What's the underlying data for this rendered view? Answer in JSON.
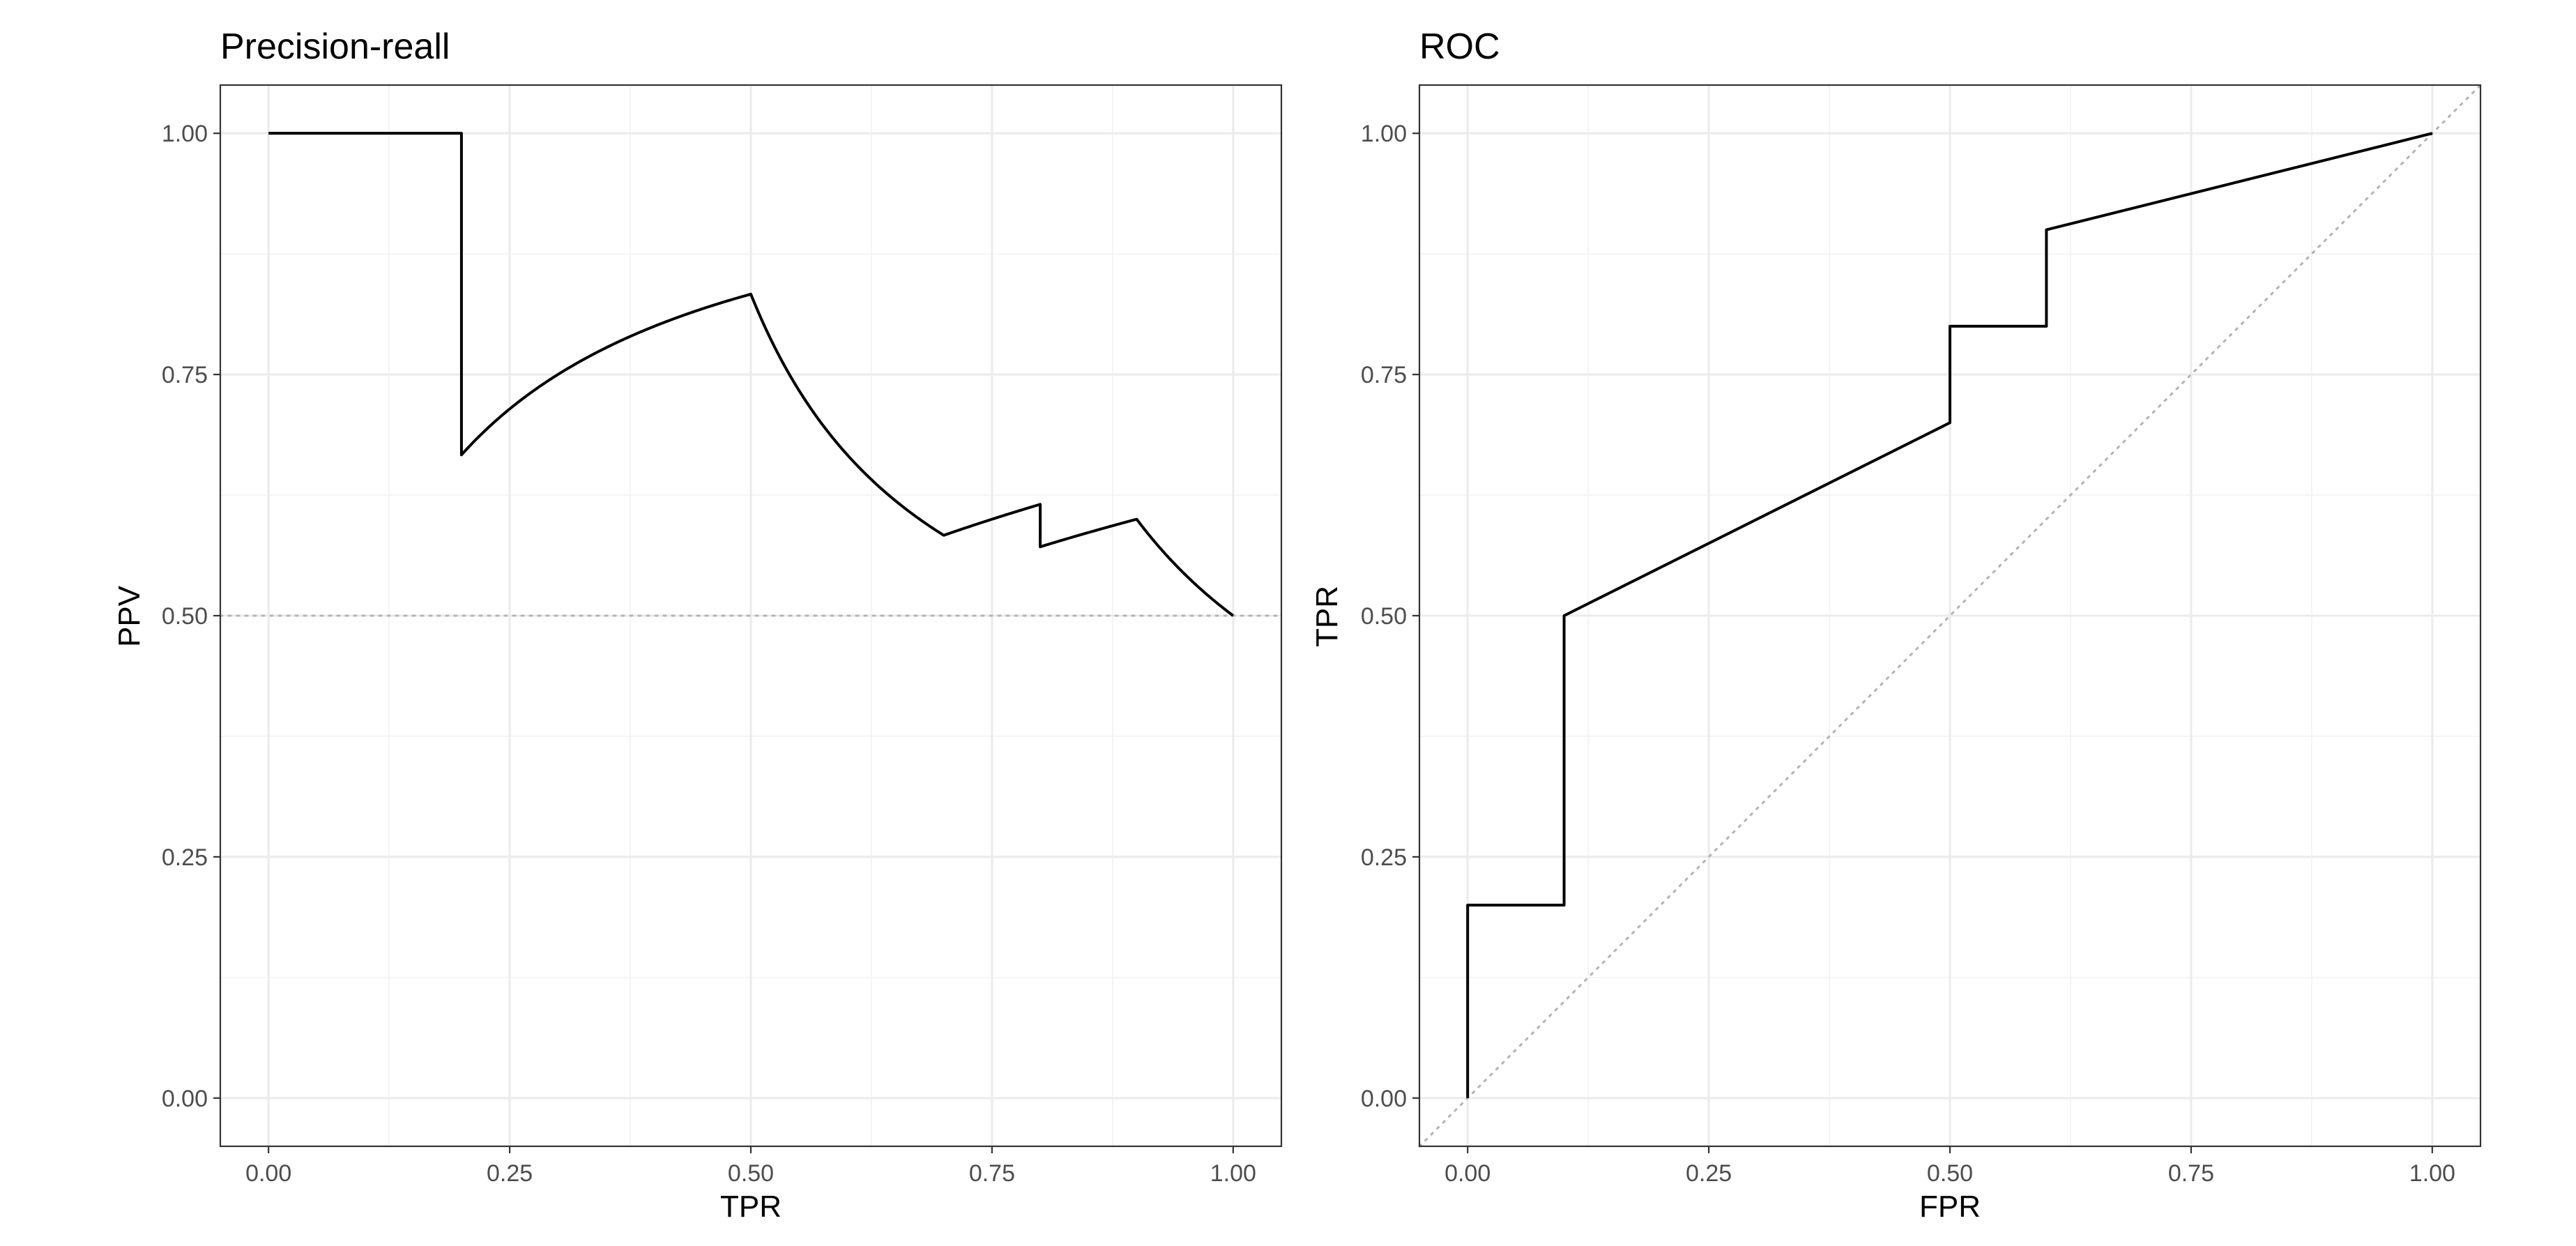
{
  "chart_data": [
    {
      "type": "line",
      "title": "Precision-reall",
      "xlabel": "TPR",
      "ylabel": "PPV",
      "xlim": [
        -0.05,
        1.05
      ],
      "ylim": [
        -0.05,
        1.05
      ],
      "x_ticks": [
        "0.00",
        "0.25",
        "0.50",
        "0.75",
        "1.00"
      ],
      "y_ticks": [
        "0.00",
        "0.25",
        "0.50",
        "0.75",
        "1.00"
      ],
      "grid": true,
      "reference_line": {
        "type": "horizontal",
        "y": 0.5,
        "style": "dotted",
        "color": "#b3b3b3"
      },
      "series": [
        {
          "x": [
            0.0,
            0.2,
            0.2,
            0.3,
            0.4,
            0.5,
            0.6,
            0.7,
            0.8,
            0.8,
            0.9,
            1.0
          ],
          "y": [
            1.0,
            1.0,
            0.6667,
            0.75,
            0.8,
            0.8333,
            0.6667,
            0.5833,
            0.6154,
            0.5714,
            0.6,
            0.5
          ],
          "color": "#000000"
        }
      ]
    },
    {
      "type": "line",
      "title": "ROC",
      "xlabel": "FPR",
      "ylabel": "TPR",
      "xlim": [
        -0.05,
        1.05
      ],
      "ylim": [
        -0.05,
        1.05
      ],
      "x_ticks": [
        "0.00",
        "0.25",
        "0.50",
        "0.75",
        "1.00"
      ],
      "y_ticks": [
        "0.00",
        "0.25",
        "0.50",
        "0.75",
        "1.00"
      ],
      "grid": true,
      "reference_line": {
        "type": "diagonal",
        "style": "dotted",
        "color": "#b3b3b3"
      },
      "series": [
        {
          "x": [
            0.0,
            0.0,
            0.1,
            0.1,
            0.5,
            0.5,
            0.6,
            0.6,
            1.0
          ],
          "y": [
            0.0,
            0.2,
            0.2,
            0.5,
            0.7,
            0.8,
            0.8,
            0.9,
            1.0
          ],
          "color": "#000000"
        }
      ]
    }
  ]
}
